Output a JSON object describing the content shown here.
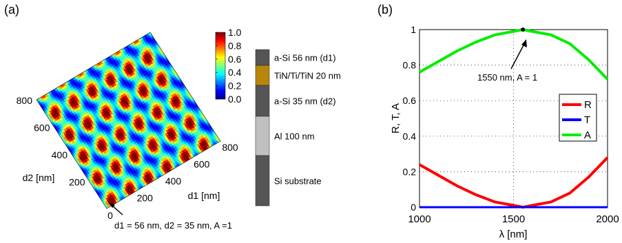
{
  "panels": {
    "a_label": "(a)",
    "b_label": "(b)"
  },
  "chart_data": [
    {
      "type": "heatmap",
      "panel": "(a)",
      "xlabel": "d1 [nm]",
      "ylabel": "d2 [nm]",
      "x_ticks": [
        "200",
        "400",
        "600",
        "800"
      ],
      "y_ticks": [
        "0",
        "200",
        "400",
        "600",
        "800"
      ],
      "xlim": [
        0,
        800
      ],
      "ylim": [
        0,
        800
      ],
      "colorbar": {
        "ticks": [
          "0.0",
          "0.2",
          "0.4",
          "0.6",
          "0.8",
          "1.0"
        ],
        "range": [
          0,
          1
        ],
        "colormap": "jet"
      },
      "annotation": "d1 = 56 nm, d2 = 35 nm, A =1",
      "maximum_point": {
        "d1": 56,
        "d2": 35,
        "A": 1
      },
      "period_nm": {
        "d1": 130,
        "d2": 160
      }
    },
    {
      "type": "diagram",
      "panel": "layer-stack",
      "layers": [
        {
          "label": "a-Si  56 nm (d1)",
          "color": "#555555"
        },
        {
          "label": "TiN/Ti/TiN  20 nm",
          "color": "#b8860b"
        },
        {
          "label": "a-Si  35 nm (d2)",
          "color": "#555555"
        },
        {
          "label": "Al  100 nm",
          "color": "#c0c0c0"
        },
        {
          "label": "Si substrate",
          "color": "#555555"
        }
      ]
    },
    {
      "type": "line",
      "panel": "(b)",
      "xlabel": "λ [nm]",
      "ylabel": "R, T, A",
      "xlim": [
        1000,
        2000
      ],
      "ylim": [
        0,
        1
      ],
      "x_ticks": [
        "1000",
        "1500",
        "2000"
      ],
      "y_ticks": [
        "0",
        "0.2",
        "0.4",
        "0.6",
        "0.8",
        "1"
      ],
      "grid": true,
      "legend_position": "right",
      "x": [
        1000,
        1100,
        1200,
        1300,
        1400,
        1500,
        1550,
        1600,
        1700,
        1800,
        1900,
        2000
      ],
      "series": [
        {
          "name": "R",
          "color": "#ff0000",
          "values": [
            0.24,
            0.18,
            0.12,
            0.07,
            0.03,
            0.01,
            0.0,
            0.01,
            0.03,
            0.08,
            0.17,
            0.28
          ]
        },
        {
          "name": "T",
          "color": "#0000ff",
          "values": [
            0,
            0,
            0,
            0,
            0,
            0,
            0,
            0,
            0,
            0,
            0,
            0
          ]
        },
        {
          "name": "A",
          "color": "#00ee00",
          "values": [
            0.76,
            0.82,
            0.88,
            0.93,
            0.97,
            0.99,
            1.0,
            0.99,
            0.97,
            0.92,
            0.83,
            0.72
          ]
        }
      ],
      "annotation": "1550 nm, A = 1",
      "annotation_point": {
        "x": 1550,
        "y": 1
      }
    }
  ],
  "colors": {
    "stack_dark": "#555555",
    "stack_gold": "#b8860b",
    "stack_light": "#c0c0c0"
  }
}
